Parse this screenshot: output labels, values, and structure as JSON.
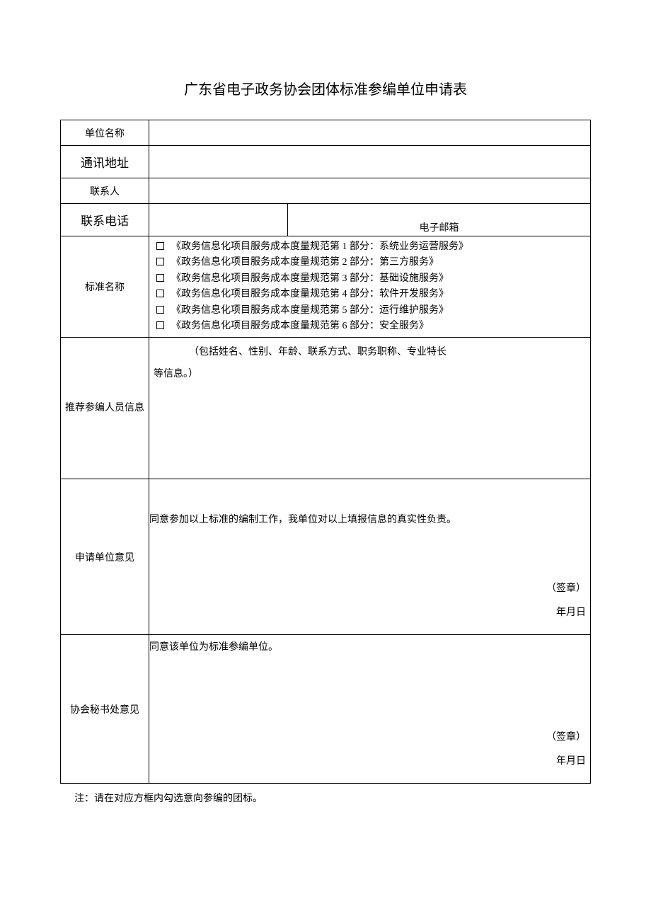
{
  "title": "广东省电子政务协会团体标准参编单位申请表",
  "labels": {
    "unit_name": "单位名称",
    "address": "通讯地址",
    "contact": "联系人",
    "phone": "联系电话",
    "email": "电子邮箱",
    "standard_name": "标准名称",
    "personnel": "推荐参编人员信息",
    "applicant_opinion": "申请单位意见",
    "secretariat_opinion": "协会秘书处意见"
  },
  "standards": [
    "《政务信息化项目服务成本度量规范第 1 部分：系统业务运营服务》",
    "《政务信息化项目服务成本度量规范第 2 部分：第三方服务》",
    "《政务信息化项目服务成本度量规范第 3 部分：基础设施服务》",
    "《政务信息化项目服务成本度量规范第 4 部分：软件开发服务》",
    "《政务信息化项目服务成本度量规范第 5 部分：运行维护服务》",
    "《政务信息化项目服务成本度量规范第 6 部分：安全服务》"
  ],
  "personnel_note": "（包括姓名、性别、年龄、联系方式、职务职称、专业特长",
  "personnel_note2": "等信息。）",
  "applicant_text": "同意参加以上标准的编制工作，我单位对以上填报信息的真实性负责。",
  "secretariat_text": "同意该单位为标准参编单位。",
  "seal": "（签章）",
  "date": "年月日",
  "footnote": "注：请在对应方框内勾选意向参编的团标。"
}
